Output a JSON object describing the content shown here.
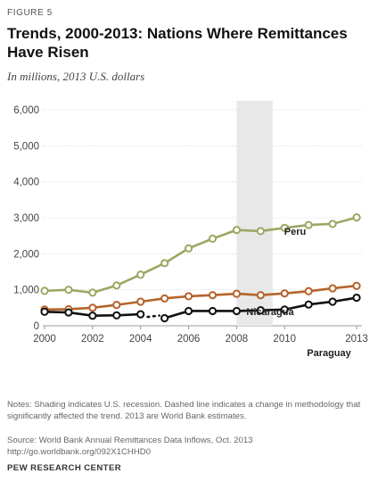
{
  "figure_label": "FIGURE 5",
  "title": "Trends, 2000-2013: Nations Where Remittances Have Risen",
  "subtitle": "In millions, 2013 U.S. dollars",
  "notes": "Notes: Shading indicates U.S. recession. Dashed line indicates a change in methodology that significantly affected the trend. 2013 are World Bank estimates.",
  "source": "Source: World Bank Annual Remittances Data Inflows, Oct. 2013",
  "url": "http://go.worldbank.org/092X1CHHD0",
  "org": "PEW RESEARCH CENTER",
  "chart_data": {
    "type": "line",
    "x": [
      2000,
      2001,
      2002,
      2003,
      2004,
      2005,
      2006,
      2007,
      2008,
      2009,
      2010,
      2011,
      2012,
      2013
    ],
    "x_tick_labels": [
      "2000",
      "2002",
      "2004",
      "2006",
      "2008",
      "2010",
      "2013"
    ],
    "x_tick_values": [
      2000,
      2002,
      2004,
      2006,
      2008,
      2010,
      2013
    ],
    "y_tick_labels": [
      "6,000",
      "5,000",
      "4,000",
      "3,000",
      "2,000",
      "1,000",
      "0"
    ],
    "y_tick_values": [
      6000,
      5000,
      4000,
      3000,
      2000,
      1000,
      0
    ],
    "xlim": [
      2000,
      2013
    ],
    "ylim": [
      0,
      6000
    ],
    "grid": true,
    "recession": [
      2008,
      2009.5
    ],
    "series": [
      {
        "name": "Peru",
        "color": "#9aa863",
        "values": [
          970,
          1000,
          920,
          1120,
          1420,
          1740,
          2150,
          2420,
          2660,
          2630,
          2720,
          2800,
          2830,
          3010
        ]
      },
      {
        "name": "Nicaragua",
        "color": "#b5632a",
        "values": [
          450,
          460,
          500,
          580,
          670,
          760,
          820,
          850,
          890,
          850,
          900,
          960,
          1040,
          1110
        ]
      },
      {
        "name": "Paraguay",
        "color": "#111111",
        "values": [
          390,
          370,
          280,
          290,
          320,
          210,
          410,
          410,
          410,
          430,
          450,
          590,
          670,
          780
        ],
        "dashed_between": [
          2004,
          2005
        ]
      }
    ]
  }
}
